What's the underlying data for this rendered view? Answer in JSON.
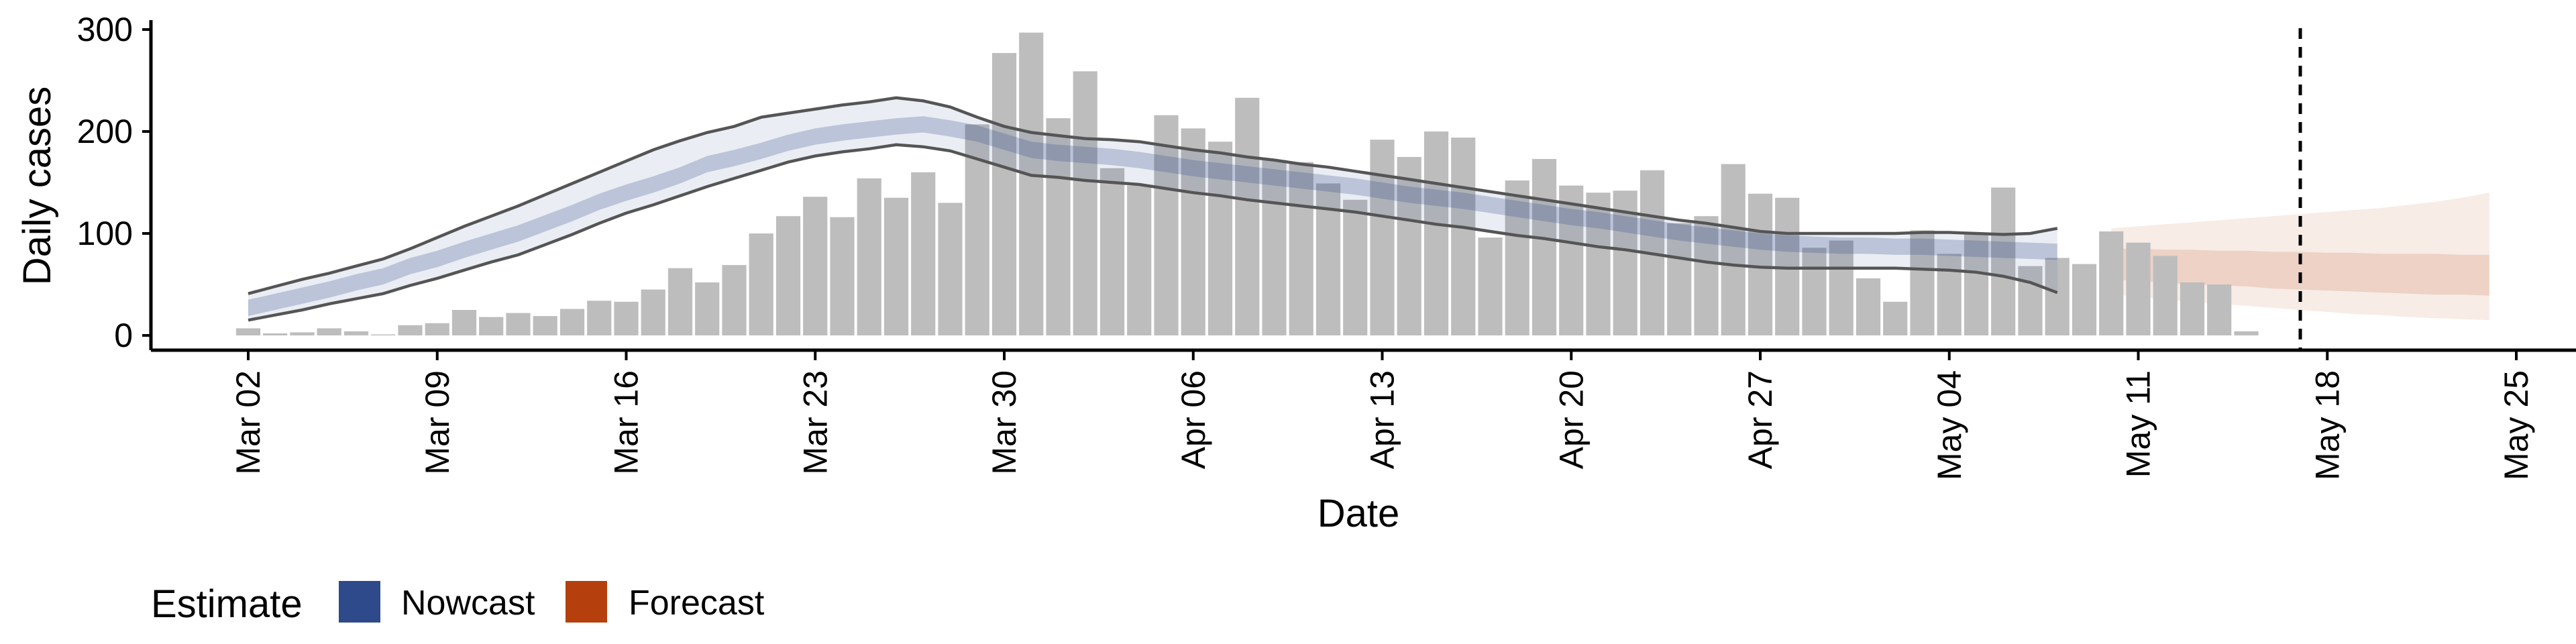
{
  "colors": {
    "bars": "#bdbdbd",
    "nowcast": "#2f4a8a",
    "forecast": "#b5400d",
    "line": "#555555",
    "axis": "#000000"
  },
  "chart_data": {
    "type": "bar",
    "xlabel": "Date",
    "ylabel": "Daily cases",
    "ylim": [
      0,
      310
    ],
    "yticks": [
      0,
      100,
      200,
      300
    ],
    "x_start": "2020-03-02",
    "x_axis_range": [
      "2020-02-25",
      "2020-05-29"
    ],
    "xticks": [
      "Mar 02",
      "Mar 09",
      "Mar 16",
      "Mar 23",
      "Mar 30",
      "Apr 06",
      "Apr 13",
      "Apr 20",
      "Apr 27",
      "May 04",
      "May 11",
      "May 18",
      "May 25"
    ],
    "vline_date": "2020-05-17",
    "vline_style": "dashed",
    "grid": false,
    "legend": {
      "title": "Estimate",
      "position": "bottom-left",
      "entries": [
        {
          "name": "Nowcast",
          "color": "#2f4a8a"
        },
        {
          "name": "Forecast",
          "color": "#b5400d"
        }
      ]
    },
    "bars": {
      "start_date": "2020-03-02",
      "values": [
        7,
        2,
        3,
        7,
        4,
        1,
        10,
        12,
        25,
        18,
        22,
        19,
        26,
        34,
        33,
        45,
        66,
        52,
        69,
        100,
        117,
        136,
        116,
        154,
        135,
        160,
        130,
        207,
        277,
        297,
        213,
        259,
        164,
        147,
        216,
        203,
        190,
        233,
        172,
        170,
        149,
        133,
        192,
        175,
        200,
        194,
        96,
        152,
        173,
        147,
        140,
        142,
        162,
        110,
        117,
        168,
        139,
        135,
        86,
        93,
        56,
        33,
        103,
        80,
        101,
        145,
        68,
        76,
        70,
        102,
        91,
        78,
        52,
        50,
        4
      ]
    },
    "nowcast": {
      "start_date": "2020-03-02",
      "median": [
        27,
        33,
        39,
        45,
        52,
        58,
        68,
        75,
        84,
        92,
        100,
        110,
        120,
        131,
        140,
        148,
        157,
        168,
        174,
        181,
        189,
        195,
        199,
        202,
        205,
        207,
        203,
        198,
        190,
        182,
        179,
        177,
        175,
        172,
        168,
        164,
        161,
        158,
        155,
        152,
        149,
        146,
        142,
        138,
        135,
        132,
        128,
        124,
        120,
        116,
        113,
        109,
        105,
        101,
        98,
        95,
        92,
        90,
        89,
        88,
        88,
        87,
        87,
        86,
        85,
        84,
        83,
        82
      ],
      "lower": [
        15,
        20,
        25,
        31,
        36,
        41,
        49,
        56,
        64,
        72,
        79,
        89,
        99,
        110,
        120,
        128,
        137,
        146,
        154,
        162,
        170,
        176,
        180,
        183,
        187,
        185,
        181,
        173,
        165,
        157,
        155,
        152,
        150,
        148,
        144,
        140,
        137,
        133,
        130,
        127,
        124,
        121,
        117,
        113,
        109,
        106,
        102,
        98,
        95,
        91,
        87,
        84,
        80,
        76,
        72,
        69,
        67,
        66,
        66,
        66,
        66,
        66,
        65,
        64,
        62,
        58,
        52,
        42
      ],
      "upper": [
        41,
        48,
        55,
        61,
        68,
        75,
        85,
        96,
        107,
        117,
        127,
        138,
        149,
        160,
        171,
        182,
        191,
        199,
        205,
        214,
        218,
        222,
        226,
        229,
        233,
        230,
        224,
        214,
        205,
        199,
        196,
        193,
        192,
        190,
        186,
        182,
        179,
        175,
        172,
        168,
        165,
        161,
        157,
        153,
        149,
        145,
        141,
        137,
        133,
        129,
        125,
        121,
        117,
        113,
        110,
        106,
        102,
        100,
        100,
        100,
        100,
        100,
        101,
        101,
        100,
        99,
        100,
        105
      ]
    },
    "forecast": {
      "start_date": "2020-05-10",
      "median": [
        72,
        71,
        70,
        69,
        68,
        67,
        66,
        65,
        64,
        63,
        62,
        62,
        61,
        61,
        60
      ],
      "lower50": [
        55,
        53,
        52,
        50,
        49,
        48,
        46,
        45,
        44,
        43,
        42,
        41,
        40,
        40,
        39
      ],
      "upper50": [
        85,
        85,
        84,
        84,
        83,
        83,
        82,
        82,
        81,
        81,
        80,
        80,
        80,
        79,
        79
      ],
      "lower90": [
        40,
        38,
        35,
        33,
        31,
        29,
        27,
        25,
        23,
        21,
        20,
        18,
        17,
        16,
        15
      ],
      "upper90": [
        105,
        107,
        109,
        111,
        113,
        115,
        117,
        119,
        121,
        123,
        125,
        128,
        131,
        135,
        140
      ]
    }
  }
}
